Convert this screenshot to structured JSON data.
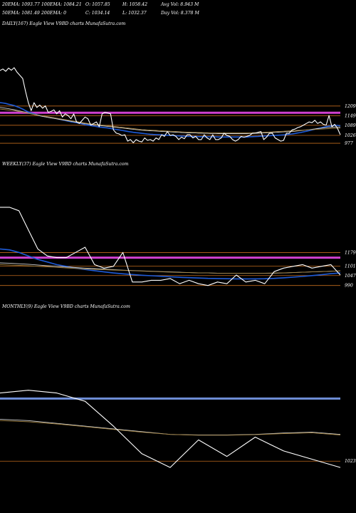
{
  "header": {
    "row1": [
      "20EMA: 1093.77",
      "100EMA: 1084.21",
      "O: 1057.85",
      "H: 1058.42",
      "Avg Vol: 8.943 M"
    ],
    "row2": [
      "50EMA: 1081.49",
      "200EMA: 0",
      "C: 1034.14",
      "L: 1032.37",
      "Day Vol: 8.378 M"
    ]
  },
  "colors": {
    "background": "#000000",
    "price": "#ffffff",
    "ema_fast": "#1e5bd8",
    "ema_mid": "#cfcfcf",
    "ema_slow": "#a08040",
    "level": "#c06a1c",
    "resistance": "#d040d0",
    "monthly_level": "#6f8fd8"
  },
  "chart_data": [
    {
      "type": "line",
      "panel": "daily",
      "title": "DAILY(167) Eagle   View  V9BD charts MunafaSutra.com",
      "levels": [
        {
          "value": 1209,
          "label": "1209",
          "color": "level"
        },
        {
          "value": 1167,
          "label": "",
          "color": "resistance"
        },
        {
          "value": 1149,
          "label": "1149",
          "color": "level"
        },
        {
          "value": 1089,
          "label": "1089",
          "color": "level"
        },
        {
          "value": 1026,
          "label": "1026",
          "color": "level"
        },
        {
          "value": 977,
          "label": "977",
          "color": "level"
        }
      ],
      "ylim": [
        955,
        1470
      ],
      "x": [
        0,
        1,
        2,
        3,
        4,
        5,
        6,
        7,
        8,
        9,
        10,
        11,
        12,
        13,
        14,
        15,
        16,
        17,
        18,
        19,
        20,
        21,
        22,
        23,
        24,
        25,
        26,
        27,
        28,
        29,
        30,
        31,
        32,
        33,
        34,
        35,
        36,
        37,
        38,
        39,
        40,
        41,
        42,
        43,
        44,
        45,
        46,
        47,
        48,
        49,
        50,
        51,
        52,
        53,
        54,
        55,
        56,
        57,
        58,
        59,
        60,
        61,
        62,
        63,
        64,
        65,
        66,
        67,
        68,
        69,
        70,
        71,
        72,
        73,
        74,
        75,
        76,
        77,
        78,
        79,
        80,
        81,
        82,
        83,
        84,
        85,
        86,
        87,
        88,
        89,
        90,
        91,
        92,
        93,
        94,
        95,
        96,
        97,
        98,
        99,
        100,
        101,
        102,
        103,
        104,
        105,
        106,
        107,
        108,
        109,
        110,
        111,
        112,
        113,
        114,
        115,
        116,
        117,
        118,
        119,
        120
      ],
      "series": [
        {
          "color": "price",
          "values": [
            1430,
            1440,
            1425,
            1445,
            1432,
            1448,
            1420,
            1400,
            1380,
            1300,
            1230,
            1180,
            1230,
            1200,
            1215,
            1195,
            1210,
            1170,
            1175,
            1185,
            1160,
            1180,
            1140,
            1160,
            1150,
            1130,
            1160,
            1110,
            1100,
            1120,
            1140,
            1130,
            1090,
            1100,
            1110,
            1080,
            1160,
            1170,
            1165,
            1160,
            1060,
            1040,
            1035,
            1025,
            1030,
            990,
            1000,
            980,
            1000,
            990,
            985,
            1010,
            995,
            1000,
            990,
            1010,
            1000,
            1030,
            1020,
            1050,
            1025,
            1030,
            1020,
            1000,
            1015,
            1005,
            1030,
            1030,
            1010,
            1020,
            1000,
            1000,
            1030,
            1010,
            1000,
            1030,
            1000,
            1000,
            1010,
            1040,
            1025,
            1020,
            1000,
            990,
            1000,
            1020,
            1015,
            1020,
            1025,
            1040,
            1040,
            1045,
            1050,
            1000,
            1015,
            1040,
            1040,
            1010,
            1000,
            990,
            995,
            1040,
            1040,
            1060,
            1065,
            1075,
            1080,
            1090,
            1100,
            1110,
            1105,
            1120,
            1100,
            1110,
            1095,
            1090,
            1150,
            1080,
            1095,
            1070,
            1030
          ]
        },
        {
          "color": "ema_fast",
          "values": [
            1230,
            1228,
            1225,
            1220,
            1216,
            1212,
            1205,
            1198,
            1190,
            1180,
            1172,
            1165,
            1160,
            1155,
            1150,
            1146,
            1143,
            1140,
            1137,
            1134,
            1131,
            1127,
            1123,
            1119,
            1115,
            1111,
            1108,
            1105,
            1101,
            1097,
            1093,
            1090,
            1087,
            1084,
            1081,
            1078,
            1076,
            1074,
            1072,
            1069,
            1066,
            1063,
            1060,
            1057,
            1054,
            1051,
            1048,
            1045,
            1043,
            1041,
            1039,
            1037,
            1035,
            1033,
            1032,
            1031,
            1030,
            1029,
            1028,
            1027,
            1026,
            1025,
            1024,
            1023,
            1022,
            1021,
            1020,
            1020,
            1019,
            1019,
            1018,
            1018,
            1018,
            1017,
            1017,
            1017,
            1017,
            1016,
            1016,
            1016,
            1016,
            1016,
            1016,
            1016,
            1016,
            1016,
            1016,
            1016,
            1017,
            1018,
            1019,
            1020,
            1021,
            1022,
            1023,
            1024,
            1025,
            1026,
            1027,
            1028,
            1029,
            1031,
            1033,
            1035,
            1038,
            1041,
            1044,
            1048,
            1052,
            1056,
            1060,
            1064,
            1068,
            1072,
            1076,
            1080,
            1084,
            1086,
            1088,
            1088,
            1085
          ]
        },
        {
          "color": "ema_mid",
          "values": [
            1200,
            1198,
            1195,
            1192,
            1189,
            1186,
            1182,
            1178,
            1174,
            1170,
            1165,
            1160,
            1156,
            1152,
            1148,
            1144,
            1141,
            1138,
            1135,
            1132,
            1129,
            1126,
            1123,
            1120,
            1117,
            1114,
            1111,
            1108,
            1105,
            1102,
            1099,
            1097,
            1094,
            1092,
            1090,
            1088,
            1086,
            1084,
            1082,
            1080,
            1078,
            1076,
            1074,
            1072,
            1070,
            1068,
            1066,
            1064,
            1062,
            1060,
            1058,
            1057,
            1056,
            1055,
            1054,
            1053,
            1052,
            1051,
            1050,
            1049,
            1048,
            1047,
            1046,
            1045,
            1044,
            1043,
            1042,
            1042,
            1041,
            1041,
            1040,
            1040,
            1039,
            1039,
            1038,
            1038,
            1038,
            1037,
            1037,
            1037,
            1037,
            1037,
            1037,
            1037,
            1037,
            1037,
            1037,
            1037,
            1038,
            1038,
            1039,
            1039,
            1040,
            1041,
            1042,
            1043,
            1044,
            1045,
            1046,
            1047,
            1048,
            1049,
            1050,
            1051,
            1052,
            1054,
            1056,
            1058,
            1060,
            1062,
            1064,
            1066,
            1068,
            1070,
            1072,
            1074,
            1076,
            1077,
            1078,
            1078,
            1077
          ]
        },
        {
          "color": "ema_slow",
          "values": [
            1190,
            1188,
            1186,
            1184,
            1182,
            1180,
            1177,
            1174,
            1171,
            1168,
            1164,
            1160,
            1157,
            1154,
            1151,
            1148,
            1145,
            1142,
            1139,
            1136,
            1133,
            1130,
            1127,
            1124,
            1121,
            1118,
            1115,
            1112,
            1109,
            1106,
            1103,
            1100,
            1098,
            1096,
            1094,
            1092,
            1090,
            1088,
            1086,
            1084,
            1082,
            1080,
            1078,
            1076,
            1074,
            1072,
            1070,
            1068,
            1066,
            1064,
            1062,
            1061,
            1060,
            1059,
            1058,
            1057,
            1056,
            1055,
            1054,
            1053,
            1052,
            1051,
            1050,
            1049,
            1048,
            1047,
            1046,
            1046,
            1045,
            1045,
            1044,
            1044,
            1043,
            1043,
            1042,
            1042,
            1042,
            1041,
            1041,
            1041,
            1041,
            1041,
            1041,
            1041,
            1041,
            1041,
            1041,
            1041,
            1042,
            1042,
            1043,
            1043,
            1044,
            1045,
            1046,
            1047,
            1048,
            1049,
            1050,
            1051,
            1052,
            1053,
            1054,
            1055,
            1056,
            1057,
            1058,
            1059,
            1060,
            1061,
            1062,
            1063,
            1064,
            1065,
            1066,
            1067,
            1068,
            1069,
            1070,
            1070,
            1070
          ]
        }
      ]
    },
    {
      "type": "line",
      "panel": "weekly",
      "title": "WEEKLY(37) Eagle   View  V9BD charts MunafaSutra.com",
      "levels": [
        {
          "value": 1179,
          "label": "1179",
          "color": "level"
        },
        {
          "value": 1150,
          "label": "",
          "color": "resistance"
        },
        {
          "value": 1101,
          "label": "1101",
          "color": "level"
        },
        {
          "value": 1047,
          "label": "1047",
          "color": "level"
        },
        {
          "value": 990,
          "label": "990",
          "color": "level"
        }
      ],
      "ylim": [
        960,
        1460
      ],
      "x": [
        0,
        1,
        2,
        3,
        4,
        5,
        6,
        7,
        8,
        9,
        10,
        11,
        12,
        13,
        14,
        15,
        16,
        17,
        18,
        19,
        20,
        21,
        22,
        23,
        24,
        25,
        26,
        27,
        28,
        29,
        30,
        31,
        32,
        33,
        34,
        35,
        36
      ],
      "series": [
        {
          "color": "price",
          "values": [
            1440,
            1440,
            1420,
            1310,
            1200,
            1160,
            1150,
            1150,
            1180,
            1210,
            1110,
            1090,
            1100,
            1180,
            1010,
            1010,
            1020,
            1020,
            1030,
            1000,
            1020,
            1000,
            990,
            1010,
            1000,
            1050,
            1010,
            1020,
            1000,
            1070,
            1090,
            1100,
            1110,
            1090,
            1100,
            1110,
            1050
          ]
        },
        {
          "color": "ema_fast",
          "values": [
            1200,
            1195,
            1180,
            1160,
            1140,
            1125,
            1110,
            1100,
            1090,
            1082,
            1075,
            1068,
            1062,
            1057,
            1053,
            1049,
            1046,
            1043,
            1040,
            1037,
            1035,
            1033,
            1031,
            1030,
            1029,
            1028,
            1028,
            1028,
            1029,
            1031,
            1034,
            1038,
            1042,
            1047,
            1052,
            1058,
            1062
          ]
        },
        {
          "color": "ema_mid",
          "values": [
            1120,
            1118,
            1115,
            1112,
            1108,
            1104,
            1100,
            1096,
            1093,
            1090,
            1087,
            1084,
            1081,
            1078,
            1076,
            1074,
            1072,
            1070,
            1068,
            1066,
            1064,
            1063,
            1062,
            1061,
            1060,
            1060,
            1060,
            1060,
            1060,
            1061,
            1062,
            1064,
            1066,
            1068,
            1070,
            1072,
            1074
          ]
        },
        {
          "color": "ema_slow",
          "values": [
            1110,
            1108,
            1106,
            1103,
            1100,
            1097,
            1094,
            1091,
            1088,
            1085,
            1083,
            1081,
            1079,
            1077,
            1075,
            1073,
            1071,
            1069,
            1067,
            1065,
            1064,
            1063,
            1062,
            1061,
            1060,
            1060,
            1060,
            1060,
            1061,
            1062,
            1063,
            1064,
            1066,
            1068,
            1070,
            1072,
            1074
          ]
        }
      ]
    },
    {
      "type": "line",
      "panel": "monthly",
      "title": "MONTHLY(9) Eagle   View  V9BD charts MunafaSutra.com",
      "levels": [
        {
          "value": 1250,
          "label": "",
          "color": "monthly_level"
        },
        {
          "value": 1023,
          "label": "1023",
          "color": "level"
        }
      ],
      "ylim": [
        990,
        1300
      ],
      "x": [
        0,
        1,
        2,
        3,
        4,
        5,
        6,
        7,
        8,
        9,
        10,
        11,
        12
      ],
      "series": [
        {
          "color": "price",
          "values": [
            1270,
            1280,
            1270,
            1240,
            1150,
            1050,
            1000,
            1100,
            1040,
            1110,
            1060,
            1030,
            1000
          ]
        },
        {
          "color": "ema_mid",
          "values": [
            1175,
            1170,
            1160,
            1150,
            1140,
            1130,
            1120,
            1118,
            1118,
            1120,
            1125,
            1128,
            1120
          ]
        },
        {
          "color": "ema_slow",
          "values": [
            1170,
            1166,
            1158,
            1148,
            1138,
            1128,
            1120,
            1117,
            1117,
            1119,
            1123,
            1126,
            1118
          ]
        }
      ]
    }
  ]
}
